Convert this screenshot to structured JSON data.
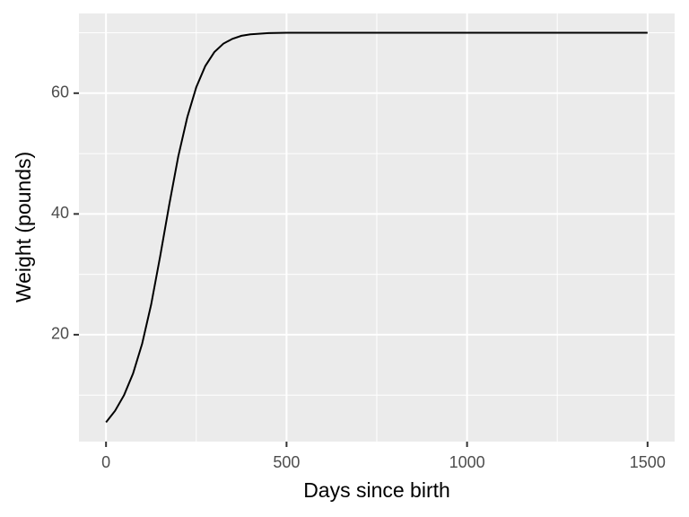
{
  "chart_data": {
    "type": "line",
    "xlabel": "Days since birth",
    "ylabel": "Weight (pounds)",
    "x": [
      0,
      25,
      50,
      75,
      100,
      125,
      150,
      175,
      200,
      225,
      250,
      275,
      300,
      325,
      350,
      375,
      400,
      450,
      500,
      750,
      1000,
      1250,
      1500
    ],
    "values": [
      5.5,
      7.4,
      10,
      13.6,
      18.5,
      25,
      33,
      41.5,
      49.5,
      56,
      61,
      64.5,
      66.8,
      68.2,
      69,
      69.5,
      69.75,
      69.95,
      70,
      70,
      70,
      70,
      70
    ],
    "color": "#000000",
    "xlim": [
      -75,
      1575
    ],
    "ylim": [
      2.3,
      73.2
    ],
    "xticks": [
      0,
      500,
      1000,
      1500
    ],
    "yticks": [
      20,
      40,
      60
    ],
    "xminor": [
      250,
      750,
      1250
    ],
    "yminor": [
      10,
      30,
      50,
      70
    ],
    "grid": true
  }
}
